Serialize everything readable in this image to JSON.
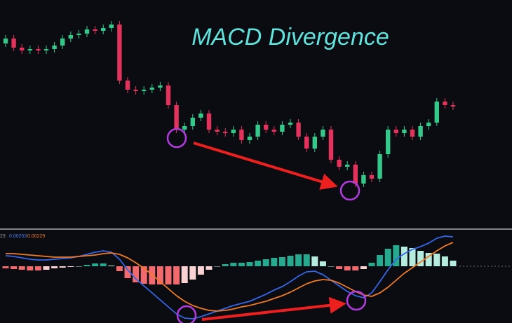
{
  "chart_data": [
    {
      "type": "candlestick",
      "title": "MACD Divergence",
      "open": [
        258,
        265,
        252,
        248,
        250,
        248,
        250,
        255,
        265,
        270,
        272,
        278,
        276,
        280,
        285,
        205,
        192,
        190,
        192,
        195,
        198,
        170,
        135,
        140,
        152,
        158,
        135,
        132,
        130,
        135,
        120,
        125,
        142,
        135,
        132,
        142,
        145,
        125,
        108,
        125,
        135,
        92,
        82,
        85,
        58,
        70,
        65,
        100,
        135,
        130,
        135,
        125,
        140,
        145,
        175,
        170
      ],
      "high": [
        270,
        270,
        257,
        255,
        255,
        255,
        260,
        270,
        275,
        277,
        283,
        283,
        285,
        290,
        290,
        210,
        197,
        197,
        200,
        203,
        203,
        175,
        145,
        157,
        163,
        163,
        140,
        137,
        140,
        140,
        130,
        147,
        147,
        140,
        147,
        150,
        150,
        130,
        130,
        140,
        140,
        97,
        90,
        90,
        75,
        75,
        105,
        140,
        140,
        140,
        140,
        145,
        150,
        180,
        180,
        175
      ],
      "low": [
        253,
        247,
        243,
        243,
        243,
        243,
        245,
        250,
        260,
        265,
        267,
        271,
        271,
        275,
        200,
        187,
        185,
        185,
        187,
        190,
        165,
        130,
        130,
        135,
        147,
        130,
        127,
        125,
        125,
        115,
        115,
        120,
        130,
        127,
        127,
        137,
        120,
        103,
        103,
        120,
        87,
        77,
        77,
        53,
        53,
        60,
        60,
        95,
        125,
        125,
        120,
        120,
        135,
        140,
        165,
        163
      ],
      "close": [
        265,
        252,
        248,
        250,
        248,
        250,
        255,
        265,
        270,
        272,
        278,
        276,
        280,
        285,
        205,
        192,
        190,
        192,
        195,
        198,
        170,
        135,
        140,
        152,
        158,
        135,
        132,
        130,
        135,
        120,
        125,
        142,
        135,
        132,
        142,
        145,
        125,
        108,
        125,
        135,
        92,
        82,
        85,
        58,
        70,
        65,
        100,
        135,
        130,
        135,
        125,
        140,
        145,
        175,
        170,
        168
      ],
      "up_color": "#34c98a",
      "down_color": "#e3335c",
      "ylim": [
        0,
        320
      ]
    },
    {
      "type": "macd",
      "legend_texts": [
        "23",
        "0.00253",
        "0.00229"
      ],
      "series": [
        {
          "kind": "line",
          "color": "#3566e8",
          "values": [
            15,
            14,
            12,
            10,
            9,
            9,
            10,
            11,
            12,
            14,
            17,
            20,
            22,
            20,
            10,
            -5,
            -18,
            -28,
            -38,
            -48,
            -58,
            -68,
            -74,
            -75,
            -72,
            -68,
            -64,
            -60,
            -56,
            -53,
            -50,
            -45,
            -40,
            -34,
            -29,
            -22,
            -14,
            -8,
            -7,
            -12,
            -20,
            -28,
            -36,
            -42,
            -45,
            -38,
            -22,
            -5,
            10,
            18,
            24,
            28,
            33,
            40,
            43,
            42
          ]
        },
        {
          "kind": "line",
          "color": "#f07a22",
          "values": [
            18,
            18,
            17,
            16,
            15,
            14,
            13,
            13,
            13,
            14,
            15,
            16,
            18,
            19,
            17,
            12,
            5,
            -3,
            -12,
            -22,
            -32,
            -42,
            -50,
            -56,
            -60,
            -63,
            -64,
            -63,
            -61,
            -58,
            -56,
            -53,
            -50,
            -46,
            -42,
            -37,
            -31,
            -25,
            -21,
            -19,
            -20,
            -24,
            -30,
            -36,
            -41,
            -43,
            -38,
            -30,
            -20,
            -10,
            -2,
            6,
            14,
            22,
            29,
            34
          ]
        },
        {
          "kind": "histogram",
          "values": [
            -3,
            -4,
            -5,
            -6,
            -6,
            -5,
            -3,
            -2,
            -1,
            0,
            2,
            4,
            4,
            1,
            -7,
            -17,
            -23,
            -25,
            -26,
            -26,
            -26,
            -26,
            -24,
            -19,
            -12,
            -5,
            0,
            3,
            5,
            5,
            6,
            8,
            10,
            12,
            13,
            15,
            17,
            17,
            14,
            7,
            0,
            -4,
            -6,
            -6,
            -4,
            5,
            16,
            25,
            30,
            28,
            26,
            22,
            19,
            18,
            14,
            8
          ]
        }
      ],
      "hist_colors": [
        "#26a98f",
        "#b6ece0",
        "#f26a6e",
        "#fbd2d3"
      ],
      "ylim": [
        -81,
        50
      ]
    }
  ]
}
